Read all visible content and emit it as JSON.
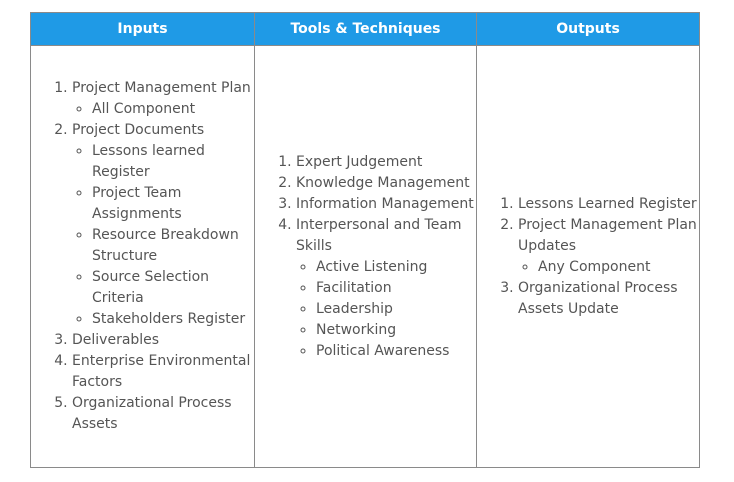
{
  "headers": {
    "inputs": "Inputs",
    "tools": "Tools & Techniques",
    "outputs": "Outputs"
  },
  "inputs": {
    "item1": "Project Management Plan",
    "item1_sub": [
      "All Component"
    ],
    "item2": "Project Documents",
    "item2_sub": [
      "Lessons learned Register",
      "Project Team Assignments",
      "Resource Breakdown Structure",
      "Source Selection Criteria",
      "Stakeholders Register"
    ],
    "item3": "Deliverables",
    "item4": "Enterprise Environmental Factors",
    "item5": "Organizational Process Assets"
  },
  "tools": {
    "item1": "Expert Judgement",
    "item2": "Knowledge Management",
    "item3": "Information Management",
    "item4": "Interpersonal and Team Skills",
    "item4_sub": [
      "Active Listening",
      "Facilitation",
      "Leadership",
      "Networking",
      "Political Awareness"
    ]
  },
  "outputs": {
    "item1": "Lessons Learned Register",
    "item2": "Project Management Plan Updates",
    "item2_sub": [
      "Any Component"
    ],
    "item3": "Organizational Process Assets Update"
  },
  "colors": {
    "header_bg": "#1f9ae6",
    "header_text": "#ffffff",
    "body_text": "#555555",
    "border": "#8a8a8a"
  }
}
